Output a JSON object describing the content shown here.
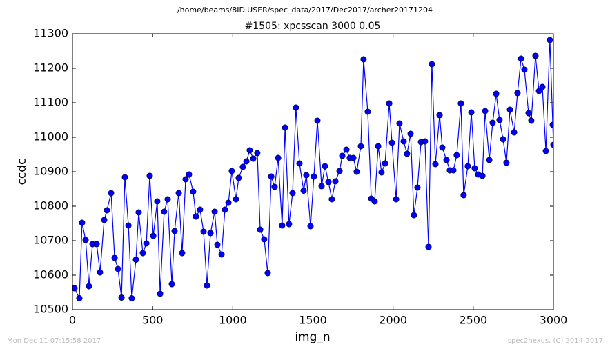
{
  "chart_data": {
    "type": "line",
    "suptitle": "/home/beams/8IDIUSER/spec_data/2017/Dec2017/archer20171204",
    "title": "#1505: xpcsscan 3000 0.05",
    "xlabel": "img_n",
    "ylabel": "ccdc",
    "footer_left": "Mon Dec 11 07:15:58 2017",
    "footer_right": "spec2nexus, (C) 2014-2017",
    "xlim": [
      0,
      3000
    ],
    "xticks": [
      0,
      500,
      1000,
      1500,
      2000,
      2500,
      3000
    ],
    "ylim": [
      10500,
      11300
    ],
    "yticks": [
      10500,
      10600,
      10700,
      10800,
      10900,
      11000,
      11100,
      11200,
      11300
    ],
    "series": [
      {
        "color": "#0000ff",
        "x": [
          13,
          43,
          60,
          82,
          103,
          125,
          151,
          172,
          198,
          215,
          241,
          263,
          284,
          306,
          327,
          349,
          370,
          396,
          413,
          439,
          461,
          482,
          504,
          529,
          547,
          572,
          594,
          620,
          637,
          663,
          684,
          706,
          727,
          753,
          770,
          796,
          818,
          839,
          861,
          887,
          904,
          930,
          951,
          973,
          994,
          1020,
          1037,
          1063,
          1085,
          1106,
          1128,
          1153,
          1171,
          1196,
          1218,
          1240,
          1261,
          1283,
          1308,
          1326,
          1351,
          1373,
          1394,
          1416,
          1442,
          1459,
          1485,
          1506,
          1528,
          1554,
          1575,
          1597,
          1618,
          1640,
          1666,
          1683,
          1709,
          1730,
          1752,
          1773,
          1799,
          1816,
          1842,
          1864,
          1885,
          1907,
          1928,
          1950,
          1976,
          1993,
          2019,
          2040,
          2066,
          2087,
          2109,
          2130,
          2152,
          2174,
          2199,
          2221,
          2242,
          2264,
          2290,
          2307,
          2333,
          2354,
          2376,
          2397,
          2423,
          2440,
          2466,
          2488,
          2509,
          2531,
          2557,
          2574,
          2600,
          2621,
          2643,
          2664,
          2686,
          2707,
          2729,
          2755,
          2776,
          2798,
          2819,
          2845,
          2862,
          2888,
          2910,
          2931,
          2953,
          2978,
          2996,
          3000
        ],
        "values": [
          10562,
          10533,
          10752,
          10702,
          10568,
          10690,
          10690,
          10608,
          10760,
          10788,
          10838,
          10650,
          10618,
          10535,
          10884,
          10744,
          10533,
          10645,
          10782,
          10664,
          10692,
          10888,
          10714,
          10814,
          10546,
          10784,
          10820,
          10574,
          10728,
          10838,
          10664,
          10878,
          10892,
          10842,
          10770,
          10790,
          10726,
          10570,
          10722,
          10784,
          10688,
          10660,
          10790,
          10810,
          10902,
          10820,
          10882,
          10914,
          10930,
          10962,
          10938,
          10954,
          10732,
          10704,
          10606,
          10886,
          10856,
          10940,
          10744,
          11028,
          10748,
          10838,
          11086,
          10924,
          10845,
          10890,
          10742,
          10886,
          11048,
          10858,
          10916,
          10870,
          10820,
          10872,
          10902,
          10946,
          10964,
          10940,
          10940,
          10900,
          10974,
          11226,
          11074,
          10822,
          10814,
          10974,
          10898,
          10924,
          11098,
          10984,
          10820,
          11040,
          10988,
          10952,
          11010,
          10774,
          10854,
          10986,
          10988,
          10682,
          11212,
          10922,
          11064,
          10970,
          10934,
          10904,
          10904,
          10948,
          11098,
          10832,
          10916,
          11072,
          10910,
          10892,
          10888,
          11076,
          10934,
          11042,
          11126,
          11050,
          10994,
          10926,
          11080,
          11014,
          11128,
          11228,
          11196,
          11070,
          11048,
          11236,
          11134,
          11146,
          10960,
          11282,
          11036,
          10978
        ]
      }
    ]
  }
}
